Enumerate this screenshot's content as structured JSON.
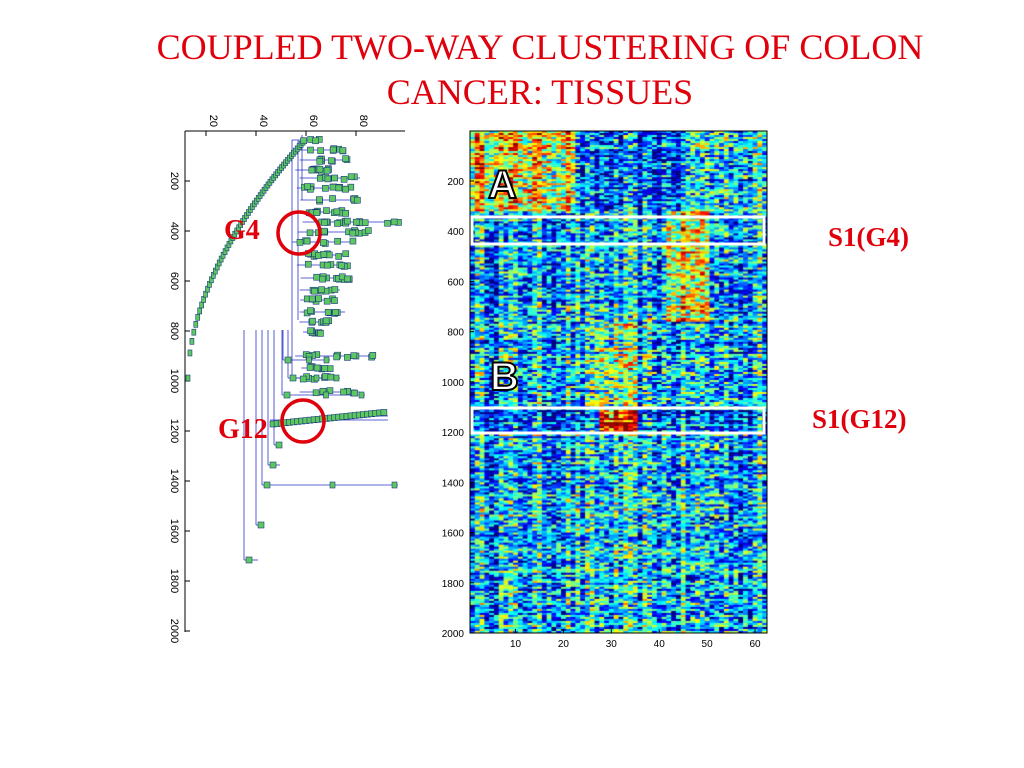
{
  "title": {
    "line1": "COUPLED TWO-WAY CLUSTERING OF COLON",
    "line2": "CANCER: TISSUES"
  },
  "colors": {
    "title": "#e0000b",
    "annotation": "#e0000b",
    "dendrogram_line": "#2a33c8",
    "dendrogram_node": "#5fc75f",
    "highlight_box": "#ffffff"
  },
  "dendrogram": {
    "x_ticks": [
      "20",
      "40",
      "60",
      "80"
    ],
    "y_ticks": [
      "200",
      "400",
      "600",
      "800",
      "1000",
      "1200",
      "1400",
      "1600",
      "1800",
      "2000"
    ],
    "labels": {
      "g4": "G4",
      "g12": "G12"
    }
  },
  "heatmap": {
    "x_ticks": [
      "10",
      "20",
      "30",
      "40",
      "50",
      "60"
    ],
    "y_ticks": [
      "200",
      "400",
      "600",
      "800",
      "1000",
      "1200",
      "1400",
      "1600",
      "1800",
      "2000"
    ],
    "x_range": [
      1,
      62
    ],
    "y_range": [
      1,
      2000
    ],
    "panel_a": "A",
    "panel_b": "B",
    "box_a_rows": [
      350,
      450
    ],
    "box_b_rows": [
      1110,
      1200
    ],
    "colormap": "jet"
  },
  "annotations": {
    "s1_g4": "S1(G4)",
    "s1_g12": "S1(G12)"
  }
}
